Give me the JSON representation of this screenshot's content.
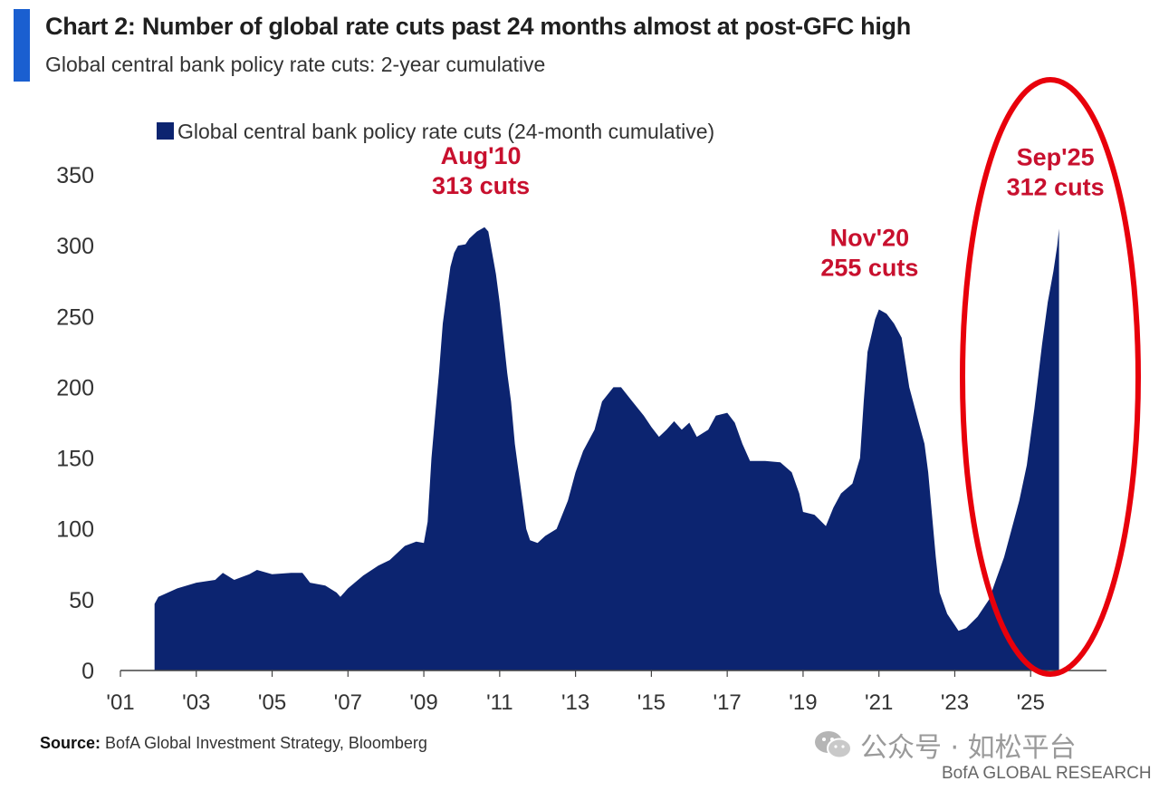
{
  "header": {
    "title": "Chart 2: Number of global rate cuts past 24 months almost at post-GFC high",
    "subtitle": "Global central bank policy rate cuts: 2-year cumulative"
  },
  "colors": {
    "accent": "#1a5fd0",
    "series": "#0c2470",
    "annotation": "#c8102e",
    "highlight_ellipse": "#e8000b"
  },
  "chart_data": {
    "type": "area",
    "legend": {
      "label": "Global central bank policy rate cuts (24-month cumulative)",
      "placement": "top-left"
    },
    "ylim": [
      0,
      350
    ],
    "yticks": [
      0,
      50,
      100,
      150,
      200,
      250,
      300,
      350
    ],
    "xlim": [
      2001,
      2027
    ],
    "xticks": [
      {
        "value": 2001,
        "label": "'01"
      },
      {
        "value": 2003,
        "label": "'03"
      },
      {
        "value": 2005,
        "label": "'05"
      },
      {
        "value": 2007,
        "label": "'07"
      },
      {
        "value": 2009,
        "label": "'09"
      },
      {
        "value": 2011,
        "label": "'11"
      },
      {
        "value": 2013,
        "label": "'13"
      },
      {
        "value": 2015,
        "label": "'15"
      },
      {
        "value": 2017,
        "label": "'17"
      },
      {
        "value": 2019,
        "label": "'19"
      },
      {
        "value": 2021,
        "label": "'21"
      },
      {
        "value": 2023,
        "label": "'23"
      },
      {
        "value": 2025,
        "label": "'25"
      }
    ],
    "grid": false,
    "series": [
      {
        "name": "Global central bank policy rate cuts (24-month cumulative)",
        "points": [
          [
            2001.9,
            47
          ],
          [
            2002.0,
            52
          ],
          [
            2002.5,
            58
          ],
          [
            2003.0,
            62
          ],
          [
            2003.5,
            64
          ],
          [
            2003.7,
            69
          ],
          [
            2004.0,
            64
          ],
          [
            2004.4,
            68
          ],
          [
            2004.6,
            71
          ],
          [
            2005.0,
            68
          ],
          [
            2005.5,
            69
          ],
          [
            2005.8,
            69
          ],
          [
            2006.0,
            62
          ],
          [
            2006.4,
            60
          ],
          [
            2006.7,
            55
          ],
          [
            2006.8,
            52
          ],
          [
            2007.0,
            58
          ],
          [
            2007.4,
            67
          ],
          [
            2007.8,
            74
          ],
          [
            2008.1,
            78
          ],
          [
            2008.5,
            88
          ],
          [
            2008.8,
            91
          ],
          [
            2009.0,
            90
          ],
          [
            2009.1,
            105
          ],
          [
            2009.2,
            150
          ],
          [
            2009.3,
            180
          ],
          [
            2009.4,
            210
          ],
          [
            2009.5,
            245
          ],
          [
            2009.6,
            265
          ],
          [
            2009.7,
            285
          ],
          [
            2009.8,
            295
          ],
          [
            2009.9,
            300
          ],
          [
            2010.1,
            301
          ],
          [
            2010.2,
            305
          ],
          [
            2010.4,
            310
          ],
          [
            2010.6,
            313
          ],
          [
            2010.7,
            310
          ],
          [
            2010.8,
            295
          ],
          [
            2010.9,
            280
          ],
          [
            2011.0,
            260
          ],
          [
            2011.1,
            235
          ],
          [
            2011.2,
            210
          ],
          [
            2011.3,
            190
          ],
          [
            2011.4,
            160
          ],
          [
            2011.5,
            140
          ],
          [
            2011.6,
            120
          ],
          [
            2011.7,
            100
          ],
          [
            2011.8,
            92
          ],
          [
            2012.0,
            90
          ],
          [
            2012.2,
            95
          ],
          [
            2012.5,
            100
          ],
          [
            2012.8,
            120
          ],
          [
            2013.0,
            140
          ],
          [
            2013.2,
            155
          ],
          [
            2013.5,
            170
          ],
          [
            2013.7,
            190
          ],
          [
            2014.0,
            200
          ],
          [
            2014.2,
            200
          ],
          [
            2014.5,
            190
          ],
          [
            2014.8,
            180
          ],
          [
            2015.0,
            172
          ],
          [
            2015.2,
            165
          ],
          [
            2015.4,
            170
          ],
          [
            2015.6,
            176
          ],
          [
            2015.8,
            170
          ],
          [
            2016.0,
            175
          ],
          [
            2016.2,
            165
          ],
          [
            2016.5,
            170
          ],
          [
            2016.7,
            180
          ],
          [
            2017.0,
            182
          ],
          [
            2017.2,
            175
          ],
          [
            2017.4,
            160
          ],
          [
            2017.6,
            148
          ],
          [
            2018.0,
            148
          ],
          [
            2018.4,
            147
          ],
          [
            2018.7,
            140
          ],
          [
            2018.9,
            125
          ],
          [
            2019.0,
            112
          ],
          [
            2019.3,
            110
          ],
          [
            2019.6,
            102
          ],
          [
            2019.8,
            115
          ],
          [
            2020.0,
            125
          ],
          [
            2020.3,
            132
          ],
          [
            2020.5,
            150
          ],
          [
            2020.6,
            190
          ],
          [
            2020.7,
            225
          ],
          [
            2020.9,
            248
          ],
          [
            2021.0,
            255
          ],
          [
            2021.2,
            252
          ],
          [
            2021.4,
            245
          ],
          [
            2021.6,
            235
          ],
          [
            2021.8,
            200
          ],
          [
            2022.0,
            180
          ],
          [
            2022.2,
            160
          ],
          [
            2022.3,
            140
          ],
          [
            2022.4,
            110
          ],
          [
            2022.5,
            80
          ],
          [
            2022.6,
            55
          ],
          [
            2022.8,
            40
          ],
          [
            2023.0,
            32
          ],
          [
            2023.1,
            28
          ],
          [
            2023.3,
            30
          ],
          [
            2023.6,
            38
          ],
          [
            2023.9,
            50
          ],
          [
            2024.1,
            65
          ],
          [
            2024.3,
            80
          ],
          [
            2024.5,
            100
          ],
          [
            2024.7,
            120
          ],
          [
            2024.9,
            145
          ],
          [
            2025.1,
            185
          ],
          [
            2025.3,
            230
          ],
          [
            2025.45,
            260
          ],
          [
            2025.6,
            282
          ],
          [
            2025.7,
            300
          ],
          [
            2025.75,
            312
          ]
        ]
      }
    ],
    "annotations": [
      {
        "line1": "Aug'10",
        "line2": "313 cuts",
        "x": 2010.6,
        "y": 313
      },
      {
        "line1": "Nov'20",
        "line2": "255 cuts",
        "x": 2020.85,
        "y": 255
      },
      {
        "line1": "Sep'25",
        "line2": "312 cuts",
        "x": 2025.75,
        "y": 312
      }
    ]
  },
  "footer": {
    "source_label": "Source:",
    "source_text": "BofA Global Investment Strategy, Bloomberg",
    "watermark": "公众号 · 如松平台",
    "brand": "BofA GLOBAL RESEARCH"
  }
}
